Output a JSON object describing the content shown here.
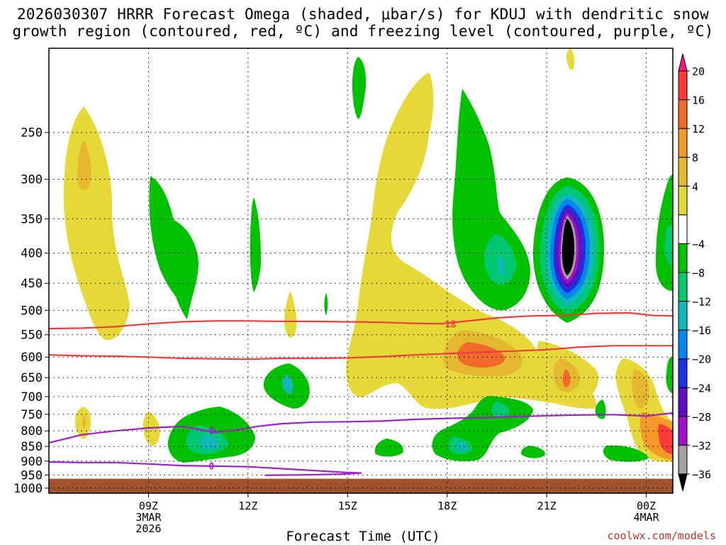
{
  "title": {
    "line1": "2026030307 HRRR Forecast Omega (shaded, μbar/s) for KDUJ with dendritic snow",
    "line2": "growth region (contoured, red, ºC) and freezing level (contoured, purple, ºC)"
  },
  "x_axis_title": "Forecast Time (UTC)",
  "credit": "coolwx.com/models",
  "chart_data": {
    "type": "time-height contour",
    "x_range_hours": [
      6.0,
      24.8
    ],
    "y_range_hpa": [
      180,
      1020
    ],
    "x_ticks": [
      {
        "hour": 9,
        "lines": [
          "09Z",
          "3MAR",
          "2026"
        ]
      },
      {
        "hour": 12,
        "lines": [
          "12Z"
        ]
      },
      {
        "hour": 15,
        "lines": [
          "15Z"
        ]
      },
      {
        "hour": 18,
        "lines": [
          "18Z"
        ]
      },
      {
        "hour": 21,
        "lines": [
          "21Z"
        ]
      },
      {
        "hour": 24,
        "lines": [
          "00Z",
          "4MAR"
        ]
      }
    ],
    "y_ticks": [
      250,
      300,
      350,
      400,
      450,
      500,
      550,
      600,
      650,
      700,
      750,
      800,
      850,
      900,
      950,
      1000
    ],
    "grid": "dotted",
    "ground_level_hpa": 964,
    "colorbar": {
      "labels": [
        "20",
        "16",
        "12",
        "8",
        "4",
        "−4",
        "−8",
        "−12",
        "−16",
        "−20",
        "−24",
        "−28",
        "−32",
        "−36"
      ],
      "colors": [
        "#ff1a80",
        "#ff3838",
        "#f06a28",
        "#f49a28",
        "#e6b830",
        "#e6d838",
        "#ffffff",
        "#00c000",
        "#00c870",
        "#10b8b8",
        "#0088ee",
        "#2030dd",
        "#6010c0",
        "#a010c8",
        "#a0a0a0",
        "#000000"
      ]
    },
    "contours": [
      {
        "name": "dendritic -18C upper",
        "color": "#f03c3c",
        "label": "18",
        "points": [
          [
            6.0,
            537
          ],
          [
            7,
            536
          ],
          [
            8,
            533
          ],
          [
            9,
            527
          ],
          [
            10,
            523
          ],
          [
            11,
            521
          ],
          [
            12,
            521
          ],
          [
            13,
            522
          ],
          [
            14,
            522
          ],
          [
            15,
            523
          ],
          [
            16,
            524
          ],
          [
            17,
            526
          ],
          [
            17.8,
            527
          ],
          [
            18.5,
            522
          ],
          [
            19.5,
            515
          ],
          [
            20.5,
            511
          ],
          [
            21.5,
            510
          ],
          [
            22.5,
            506
          ],
          [
            23.5,
            505
          ],
          [
            24.2,
            510
          ],
          [
            24.8,
            511
          ]
        ]
      },
      {
        "name": "dendritic -12C lower",
        "color": "#f03c3c",
        "label": "",
        "points": [
          [
            6.0,
            595
          ],
          [
            7,
            597
          ],
          [
            8,
            598
          ],
          [
            9,
            600
          ],
          [
            10,
            603
          ],
          [
            11,
            604
          ],
          [
            12,
            605
          ],
          [
            13,
            603
          ],
          [
            14,
            603
          ],
          [
            15,
            602
          ],
          [
            16,
            599
          ],
          [
            17,
            595
          ],
          [
            18,
            592
          ],
          [
            19,
            589
          ],
          [
            20,
            586
          ],
          [
            21,
            583
          ],
          [
            22,
            577
          ],
          [
            23,
            574
          ],
          [
            24,
            574
          ],
          [
            24.8,
            574
          ]
        ]
      },
      {
        "name": "freezing level",
        "color": "#a020c8",
        "label": "0",
        "points": [
          [
            6.0,
            838
          ],
          [
            7,
            812
          ],
          [
            8,
            800
          ],
          [
            9,
            791
          ],
          [
            10,
            786
          ],
          [
            10.5,
            795
          ],
          [
            11,
            804
          ],
          [
            11.6,
            798
          ],
          [
            12.3,
            786
          ],
          [
            13,
            778
          ],
          [
            14,
            773
          ],
          [
            15,
            772
          ],
          [
            16,
            770
          ],
          [
            17,
            765
          ],
          [
            18,
            762
          ],
          [
            19,
            760
          ],
          [
            20,
            757
          ],
          [
            21,
            754
          ],
          [
            22,
            752
          ],
          [
            23,
            751
          ],
          [
            24,
            755
          ],
          [
            24.8,
            746
          ]
        ]
      },
      {
        "name": "freezing level low",
        "color": "#a020c8",
        "label": "0",
        "points": [
          [
            6.0,
            903
          ],
          [
            7,
            905
          ],
          [
            8,
            905
          ],
          [
            9,
            910
          ],
          [
            10,
            916
          ],
          [
            11,
            918
          ],
          [
            12,
            920
          ],
          [
            13,
            927
          ],
          [
            14,
            934
          ],
          [
            15,
            941
          ],
          [
            15.4,
            943
          ],
          [
            14.8,
            947
          ],
          [
            13.5,
            950
          ],
          [
            12.5,
            951
          ]
        ]
      }
    ]
  }
}
